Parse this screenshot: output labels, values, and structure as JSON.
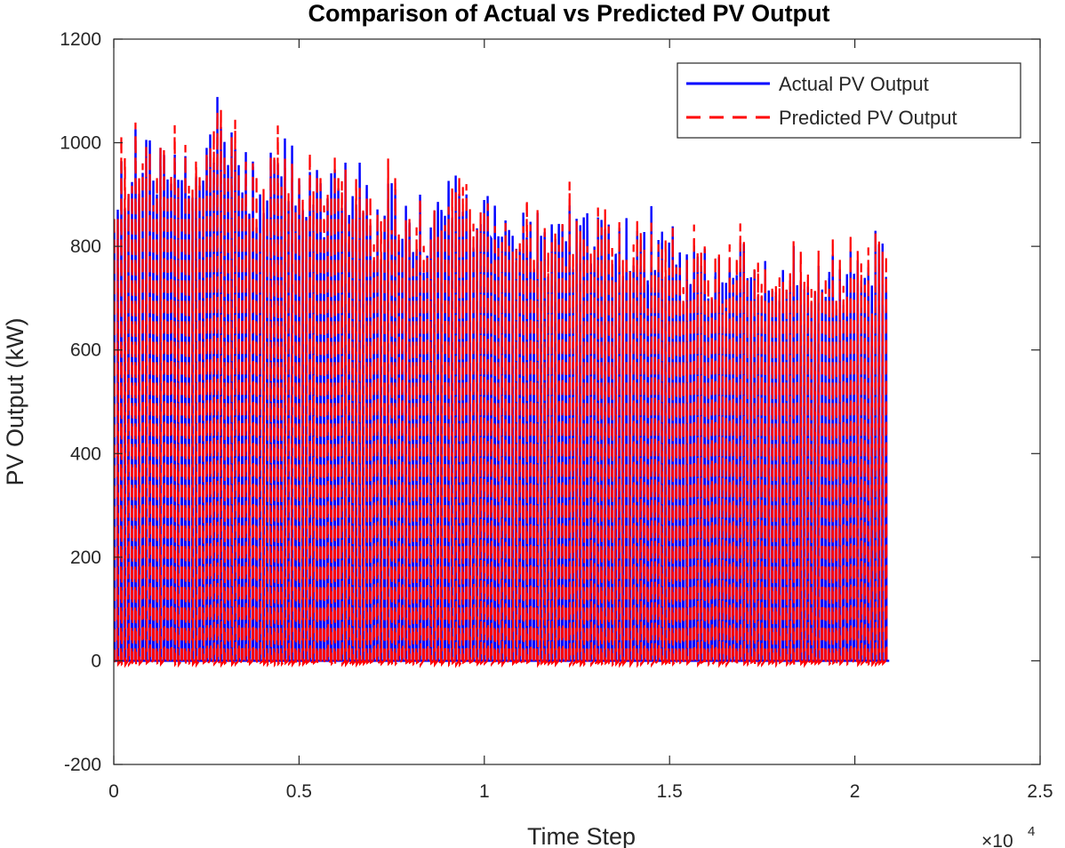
{
  "chart_data": {
    "type": "line",
    "title": "Comparison of Actual vs Predicted PV Output",
    "xlabel": "Time Step",
    "ylabel": "PV Output (kW)",
    "xlim": [
      0,
      25000
    ],
    "ylim": [
      -200,
      1200
    ],
    "x_ticks": [
      0,
      5000,
      10000,
      15000,
      20000,
      25000
    ],
    "x_tick_labels": [
      "0",
      "0.5",
      "1",
      "1.5",
      "2",
      "2.5"
    ],
    "x_exponent_base": "×10",
    "x_exponent_power": "4",
    "y_ticks": [
      -200,
      0,
      200,
      400,
      600,
      800,
      1000,
      1200
    ],
    "y_tick_labels": [
      "-200",
      "0",
      "200",
      "400",
      "600",
      "800",
      "1000",
      "1200"
    ],
    "grid": false,
    "legend_position": "top-right",
    "x_max_data": 21000,
    "series": [
      {
        "name": "Actual PV Output",
        "color": "#0000ff",
        "style": "solid"
      },
      {
        "name": "Predicted PV Output",
        "color": "#ff0000",
        "style": "dashed"
      }
    ],
    "daily_peak_envelope": {
      "x": [
        0,
        500,
        1000,
        1500,
        2000,
        2500,
        3000,
        3500,
        4000,
        4500,
        5000,
        5500,
        6000,
        6500,
        7000,
        7500,
        8000,
        8500,
        9000,
        9500,
        10000,
        10500,
        11000,
        11500,
        12000,
        12500,
        13000,
        13500,
        14000,
        14500,
        15000,
        15500,
        16000,
        16500,
        17000,
        17500,
        18000,
        18500,
        19000,
        19500,
        20000,
        20500,
        21000
      ],
      "y": [
        1000,
        1100,
        1070,
        1080,
        1090,
        1100,
        1090,
        1070,
        1040,
        1060,
        1030,
        1010,
        1000,
        990,
        980,
        980,
        970,
        960,
        960,
        970,
        1010,
        950,
        920,
        940,
        920,
        930,
        910,
        900,
        900,
        890,
        890,
        870,
        870,
        860,
        850,
        840,
        830,
        850,
        840,
        830,
        840,
        850,
        860
      ]
    }
  }
}
